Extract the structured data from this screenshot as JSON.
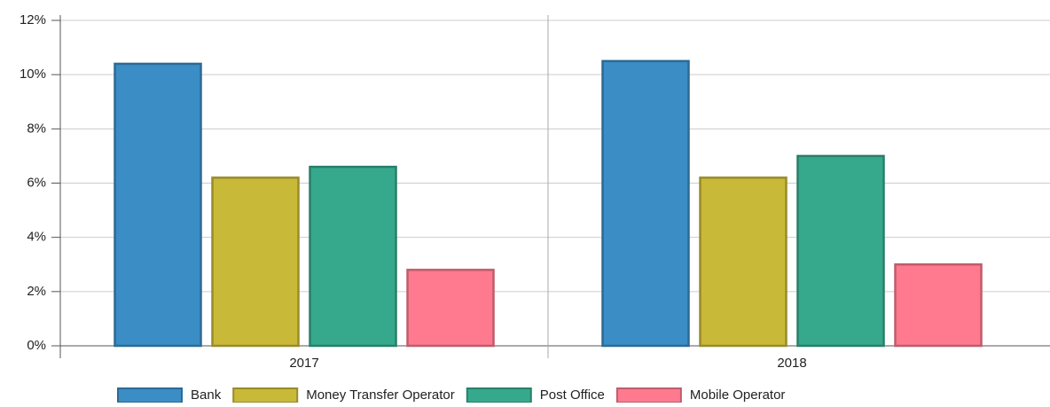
{
  "chart_data": {
    "type": "bar",
    "categories": [
      "2017",
      "2018"
    ],
    "series": [
      {
        "name": "Bank",
        "color": "#3a8dc5",
        "values": [
          10.4,
          10.5
        ]
      },
      {
        "name": "Money Transfer Operator",
        "color": "#c9b938",
        "values": [
          6.2,
          6.2
        ]
      },
      {
        "name": "Post Office",
        "color": "#36a98c",
        "values": [
          6.6,
          7.0
        ]
      },
      {
        "name": "Mobile Operator",
        "color": "#ff7a8e",
        "values": [
          2.8,
          3.0
        ]
      }
    ],
    "ylim": [
      0,
      12
    ],
    "yticks": [
      {
        "value": 0,
        "label": "0%"
      },
      {
        "value": 2,
        "label": "2%"
      },
      {
        "value": 4,
        "label": "4%"
      },
      {
        "value": 6,
        "label": "6%"
      },
      {
        "value": 8,
        "label": "8%"
      },
      {
        "value": 10,
        "label": "10%"
      },
      {
        "value": 12,
        "label": "12%"
      }
    ],
    "grid": true,
    "legend": "bottom"
  }
}
